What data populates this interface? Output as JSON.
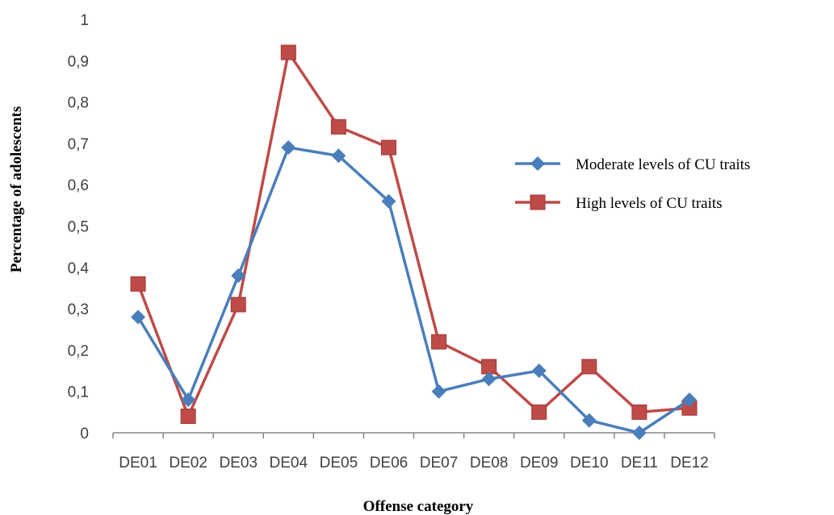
{
  "chart_data": {
    "type": "line",
    "title": "",
    "xlabel": "Offense category",
    "ylabel": "Percentage of adolescents",
    "categories": [
      "DE01",
      "DE02",
      "DE03",
      "DE04",
      "DE05",
      "DE06",
      "DE07",
      "DE08",
      "DE09",
      "DE10",
      "DE11",
      "DE12"
    ],
    "ylim": [
      0,
      1
    ],
    "yticks": [
      0,
      0.1,
      0.2,
      0.3,
      0.4,
      0.5,
      0.6,
      0.7,
      0.8,
      0.9,
      1
    ],
    "ytick_labels": [
      "0",
      "0,1",
      "0,2",
      "0,3",
      "0,4",
      "0,5",
      "0,6",
      "0,7",
      "0,8",
      "0,9",
      "1"
    ],
    "grid": false,
    "legend_position": "right",
    "series": [
      {
        "name": "Moderate levels of CU traits",
        "color": "#4a7ebb",
        "marker": "diamond",
        "values": [
          0.28,
          0.08,
          0.38,
          0.69,
          0.67,
          0.56,
          0.1,
          0.13,
          0.15,
          0.03,
          0.0,
          0.08
        ]
      },
      {
        "name": "High levels of CU traits",
        "color": "#be4b48",
        "marker": "square",
        "values": [
          0.36,
          0.04,
          0.31,
          0.92,
          0.74,
          0.69,
          0.22,
          0.16,
          0.05,
          0.16,
          0.05,
          0.06
        ]
      }
    ]
  }
}
